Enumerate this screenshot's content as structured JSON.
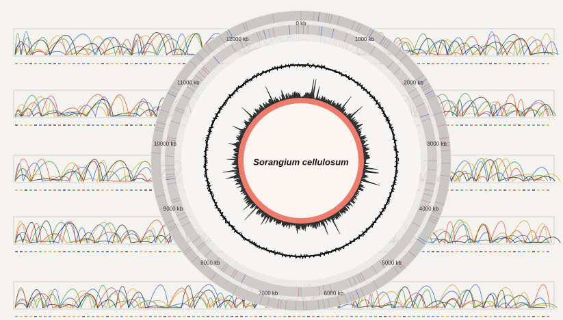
{
  "title": "Sorangium cellulosum",
  "ring_labels": [
    "0 kb",
    "1000 kb",
    "2000 kb",
    "3000 kb",
    "4000 kb",
    "5000 kb",
    "6000 kb",
    "7000 kb",
    "8000 kb",
    "9000 kb",
    "10000 kb",
    "11000 kb",
    "12000 kb"
  ]
}
